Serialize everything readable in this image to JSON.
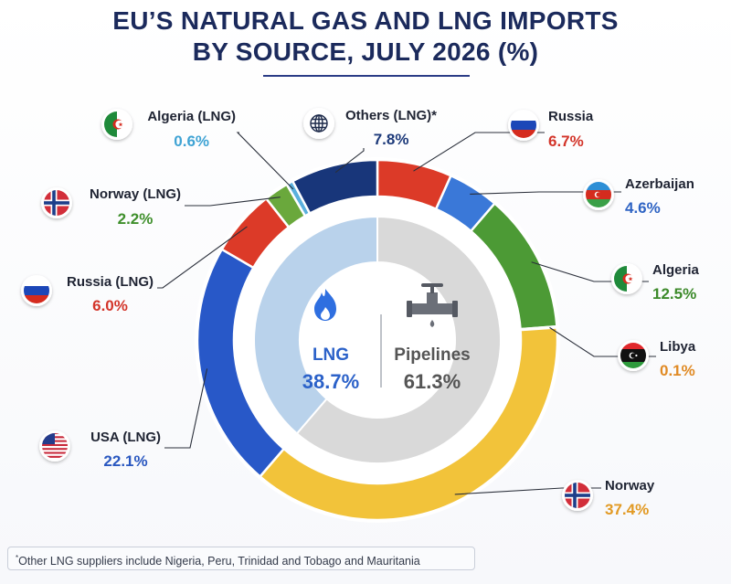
{
  "title_line1": "EU’S NATURAL GAS AND LNG IMPORTS",
  "title_line2": "BY SOURCE, JULY 2026 (%)",
  "footnote": "Other LNG suppliers include Nigeria, Peru, Trinidad and Tobago and Mauritania",
  "chart_data": {
    "type": "pie",
    "title": "EU’S NATURAL GAS AND LNG IMPORTS BY SOURCE, JULY 2026 (%)",
    "inner_ring": [
      {
        "name": "LNG",
        "value": 38.7,
        "label": "38.7%",
        "color": "#b9d2eb",
        "text_color": "#2c62c9",
        "icon": "flame-icon"
      },
      {
        "name": "Pipelines",
        "value": 61.3,
        "label": "61.3%",
        "color": "#d9d9d9",
        "text_color": "#555555",
        "icon": "pipeline-valve-icon"
      }
    ],
    "outer_ring": [
      {
        "name": "Russia",
        "value": 6.7,
        "label": "6.7%",
        "group": "Pipelines",
        "color": "#dc3a28",
        "text_color": "#d3352a",
        "icon": "russia-flag-icon"
      },
      {
        "name": "Azerbaijan",
        "value": 4.6,
        "label": "4.6%",
        "group": "Pipelines",
        "color": "#3a78d8",
        "text_color": "#2f64c4",
        "icon": "azerbaijan-flag-icon"
      },
      {
        "name": "Algeria",
        "value": 12.5,
        "label": "12.5%",
        "group": "Pipelines",
        "color": "#4c9a35",
        "text_color": "#3c8a2a",
        "icon": "algeria-flag-icon"
      },
      {
        "name": "Libya",
        "value": 0.1,
        "label": "0.1%",
        "group": "Pipelines",
        "color": "#e07f1f",
        "text_color": "#e08a24",
        "icon": "libya-flag-icon"
      },
      {
        "name": "Norway",
        "value": 37.4,
        "label": "37.4%",
        "group": "Pipelines",
        "color": "#f2c33a",
        "text_color": "#e29a24",
        "icon": "norway-flag-icon"
      },
      {
        "name": "USA (LNG)",
        "value": 22.1,
        "label": "22.1%",
        "group": "LNG",
        "color": "#2858c8",
        "text_color": "#2a58c0",
        "icon": "usa-flag-icon"
      },
      {
        "name": "Russia (LNG)",
        "value": 6.0,
        "label": "6.0%",
        "group": "LNG",
        "color": "#dc3a28",
        "text_color": "#d3352a",
        "icon": "russia-flag-icon"
      },
      {
        "name": "Norway (LNG)",
        "value": 2.2,
        "label": "2.2%",
        "group": "LNG",
        "color": "#6aa83c",
        "text_color": "#3f8f2c",
        "icon": "norway-flag-icon"
      },
      {
        "name": "Algeria (LNG)",
        "value": 0.6,
        "label": "0.6%",
        "group": "LNG",
        "color": "#5ab0dd",
        "text_color": "#3fa3d4",
        "icon": "algeria-flag-icon"
      },
      {
        "name": "Others (LNG)*",
        "value": 7.8,
        "label": "7.8%",
        "group": "LNG",
        "color": "#18367a",
        "text_color": "#1d3a7a",
        "icon": "globe-icon"
      }
    ],
    "legend": "callout-labels"
  }
}
